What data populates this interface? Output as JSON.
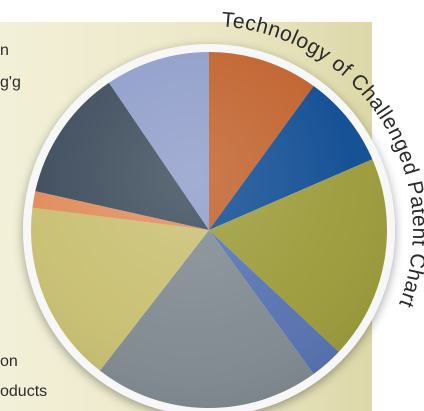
{
  "chart_data": {
    "type": "pie",
    "title": "Technology of Challenged Patent Chart",
    "slices": [
      {
        "value": 10.0,
        "color": "#c0602a"
      },
      {
        "value": 8.5,
        "color": "#0e4b92"
      },
      {
        "value": 18.5,
        "color": "#9b9a38"
      },
      {
        "value": 3.0,
        "color": "#5571b0"
      },
      {
        "value": 20.5,
        "color": "#7f8990"
      },
      {
        "value": 16.5,
        "color": "#c8bf70"
      },
      {
        "value": 1.5,
        "color": "#e08b5a"
      },
      {
        "value": 12.0,
        "color": "#3b4a5a"
      },
      {
        "value": 9.5,
        "color": "#8e9cc9"
      }
    ]
  },
  "legend_fragments": [
    {
      "text": "n"
    },
    {
      "text": "g'g"
    },
    {
      "text": "on"
    },
    {
      "text": "oducts"
    }
  ],
  "colors": {
    "panel": "#ebe7c6",
    "title": "#2a2a2a"
  }
}
